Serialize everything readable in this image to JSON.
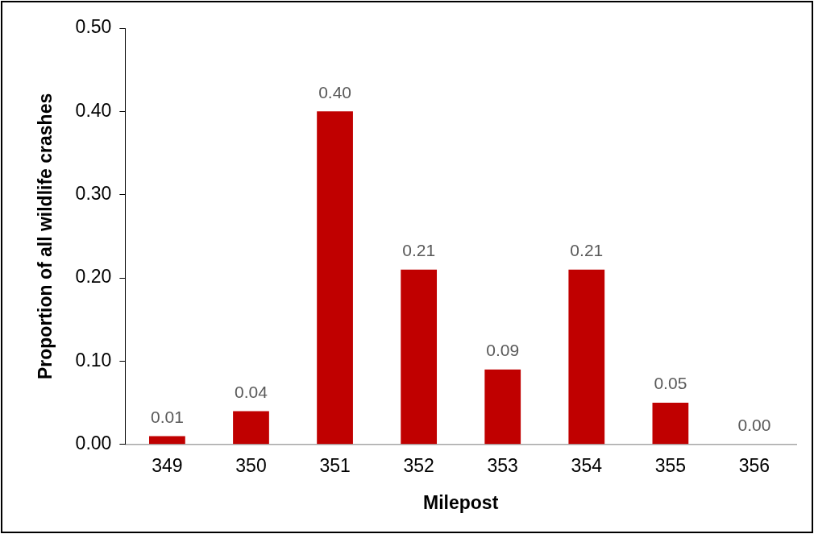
{
  "chart_data": {
    "type": "bar",
    "xlabel": "Milepost",
    "ylabel": "Proportion of all wildlife crashes",
    "categories": [
      "349",
      "350",
      "351",
      "352",
      "353",
      "354",
      "355",
      "356"
    ],
    "values": [
      0.01,
      0.04,
      0.4,
      0.21,
      0.09,
      0.21,
      0.05,
      0.0
    ],
    "color": "#c00000",
    "ylim": [
      0,
      0.5
    ],
    "yticks": [
      {
        "value": 0,
        "label": "0.00"
      },
      {
        "value": 0.1,
        "label": "0.10"
      },
      {
        "value": 0.2,
        "label": "0.20"
      },
      {
        "value": 0.3,
        "label": "0.30"
      },
      {
        "value": 0.4,
        "label": "0.40"
      },
      {
        "value": 0.5,
        "label": "0.50"
      }
    ],
    "value_labels": [
      "0.01",
      "0.04",
      "0.40",
      "0.21",
      "0.09",
      "0.21",
      "0.05",
      "0.00"
    ],
    "grid": false,
    "legend": false
  }
}
